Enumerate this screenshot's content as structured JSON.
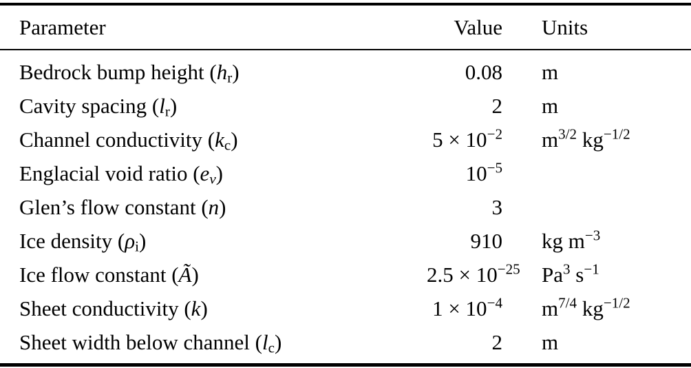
{
  "colors": {
    "background": "#ffffff",
    "text": "#000000",
    "rule": "#000000"
  },
  "table": {
    "columns": [
      {
        "key": "parameter",
        "label": "Parameter"
      },
      {
        "key": "value",
        "label": "Value"
      },
      {
        "key": "units",
        "label": "Units"
      }
    ],
    "rows": [
      {
        "parameter": "Bedrock bump height (<i>h</i><sub>r</sub>)",
        "value": "0.08",
        "units": "m"
      },
      {
        "parameter": "Cavity spacing (<i>l</i><sub>r</sub>)",
        "value": "2",
        "units": "m"
      },
      {
        "parameter": "Channel conductivity (<i>k</i><sub>c</sub>)",
        "value": "5 × 10<sup>−2</sup>",
        "units": "m<sup>3/2</sup> kg<sup>−1/2</sup>"
      },
      {
        "parameter": "Englacial void ratio (<i>e</i><sub><i>ν</i></sub>)",
        "value": "10<sup>−5</sup>",
        "units": ""
      },
      {
        "parameter": "Glen’s flow constant (<i>n</i>)",
        "value": "3",
        "units": ""
      },
      {
        "parameter": "Ice density (<i>ρ</i><sub>i</sub>)",
        "value": "910",
        "units": "kg m<sup>−3</sup>"
      },
      {
        "parameter": "Ice flow constant (<i>Ã</i>)",
        "value": "2.5 × 10<sup>−25</sup>",
        "units": "Pa<sup>3</sup> s<sup>−1</sup>"
      },
      {
        "parameter": "Sheet conductivity (<i>k</i>)",
        "value": "1 × 10<sup>−4</sup>",
        "units": "m<sup>7/4</sup> kg<sup>−1/2</sup>"
      },
      {
        "parameter": "Sheet width below channel (<i>l</i><sub>c</sub>)",
        "value": "2",
        "units": "m"
      }
    ]
  }
}
